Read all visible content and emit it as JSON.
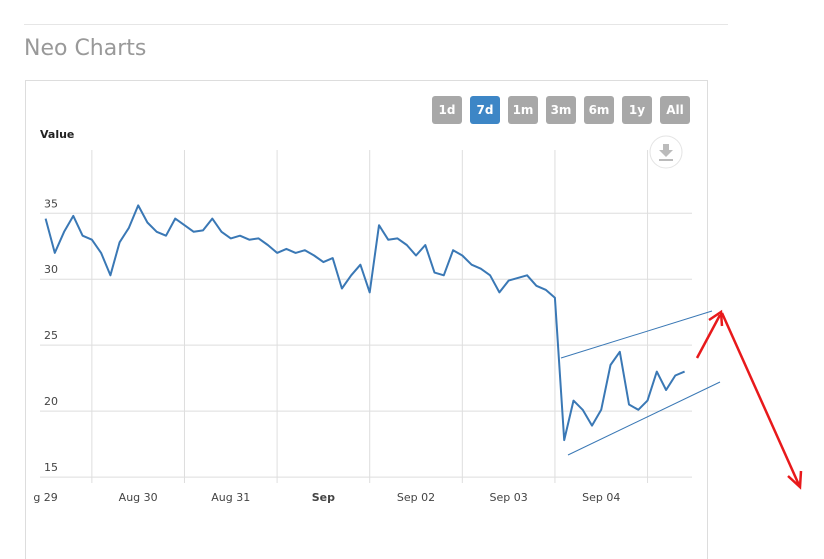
{
  "header": {
    "title": "Neo Charts"
  },
  "range_buttons": [
    "1d",
    "7d",
    "1m",
    "3m",
    "6m",
    "1y",
    "All"
  ],
  "selected_range": "7d",
  "chart_data": {
    "type": "line",
    "y_label": "Value",
    "x": [
      29.0,
      29.1,
      29.2,
      29.3,
      29.4,
      29.5,
      29.6,
      29.7,
      29.8,
      29.9,
      30.0,
      30.1,
      30.2,
      30.3,
      30.4,
      30.5,
      30.6,
      30.7,
      30.8,
      30.9,
      31.0,
      31.1,
      31.2,
      31.3,
      31.4,
      31.5,
      31.6,
      31.7,
      31.8,
      31.9,
      32.0,
      32.1,
      32.2,
      32.3,
      32.4,
      32.5,
      32.6,
      32.7,
      32.8,
      32.9,
      33.0,
      33.1,
      33.2,
      33.3,
      33.4,
      33.5,
      33.6,
      33.7,
      33.8,
      33.9,
      34.0,
      34.1,
      34.2,
      34.3,
      34.4,
      34.5,
      34.6,
      34.7,
      34.8,
      34.9,
      35.0,
      35.1,
      35.2,
      35.3,
      35.4,
      35.5,
      35.6,
      35.7,
      35.8,
      35.9
    ],
    "series": [
      {
        "name": "Value",
        "color": "#3a78b5",
        "values": [
          34.6,
          32.0,
          33.6,
          34.8,
          33.3,
          33.0,
          32.0,
          30.3,
          32.8,
          33.9,
          35.6,
          34.3,
          33.6,
          33.3,
          34.6,
          34.1,
          33.6,
          33.7,
          34.6,
          33.6,
          33.1,
          33.3,
          33.0,
          33.1,
          32.6,
          32.0,
          32.3,
          32.0,
          32.2,
          31.8,
          31.3,
          31.6,
          29.3,
          30.3,
          31.1,
          29.0,
          34.1,
          33.0,
          33.1,
          32.6,
          31.8,
          32.6,
          30.5,
          30.3,
          32.2,
          31.8,
          31.1,
          30.8,
          30.3,
          29.0,
          29.9,
          30.1,
          30.3,
          29.5,
          29.2,
          28.6,
          17.8,
          20.8,
          20.1,
          18.9,
          20.1,
          23.5,
          24.5,
          20.5,
          20.1,
          20.8,
          23.0,
          21.6,
          22.7,
          23.0
        ]
      }
    ],
    "xlim": [
      28.94,
      35.98
    ],
    "xticks": [
      {
        "value": 29,
        "label": "g 29"
      },
      {
        "value": 30,
        "label": "Aug 30"
      },
      {
        "value": 31,
        "label": "Aug 31"
      },
      {
        "value": 32,
        "label": "Sep"
      },
      {
        "value": 33,
        "label": "Sep 02"
      },
      {
        "value": 34,
        "label": "Sep 03"
      },
      {
        "value": 35,
        "label": "Sep 04"
      }
    ],
    "ylim": [
      14.55,
      39.8
    ],
    "yticks": [
      15,
      20,
      25,
      30,
      35
    ],
    "grid": true
  }
}
